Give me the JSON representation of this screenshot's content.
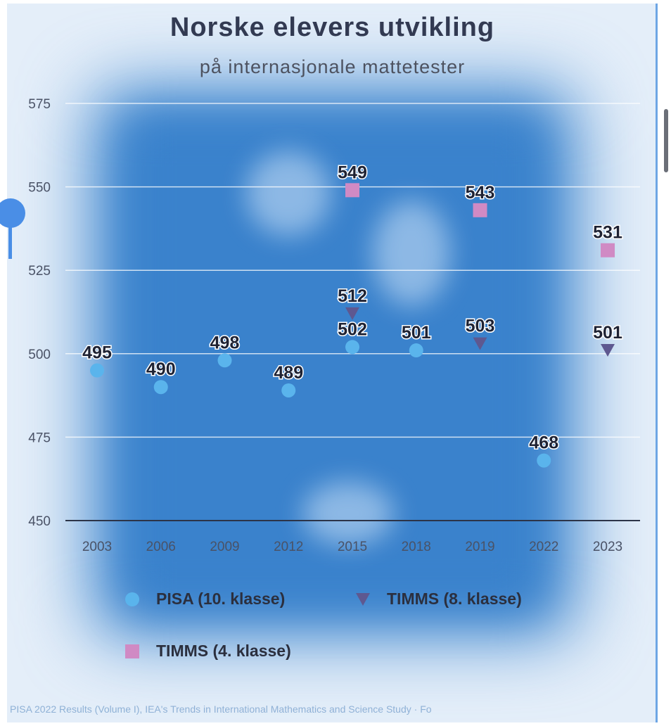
{
  "title": "Norske elevers utvikling",
  "subtitle": "på internasjonale mattetester",
  "legend": {
    "pisa": "PISA (10. klasse)",
    "timms8": "TIMMS (8. klasse)",
    "timms4": "TIMMS (4. klasse)"
  },
  "source": "PISA 2022 Results (Volume I), IEA's Trends in International Mathematics and Science Study · Fo",
  "colors": {
    "pisa": "#5ab4ec",
    "timms8": "#5e5890",
    "timms4": "#d08ac4",
    "label": "#1e2233",
    "tick": "#4a5266"
  },
  "chart_data": {
    "type": "scatter",
    "categories": [
      "2003",
      "2006",
      "2009",
      "2012",
      "2015",
      "2018",
      "2019",
      "2022",
      "2023"
    ],
    "ylim": [
      450,
      575
    ],
    "yticks": [
      450,
      475,
      500,
      525,
      550,
      575
    ],
    "grid": true,
    "legend_position": "bottom",
    "series": [
      {
        "name": "PISA (10. klasse)",
        "marker": "circle",
        "values": [
          495,
          490,
          498,
          489,
          502,
          501,
          null,
          468,
          null
        ]
      },
      {
        "name": "TIMMS (8. klasse)",
        "marker": "triangle-down",
        "values": [
          null,
          null,
          null,
          null,
          512,
          null,
          503,
          null,
          501
        ]
      },
      {
        "name": "TIMMS (4. klasse)",
        "marker": "square",
        "values": [
          null,
          null,
          null,
          null,
          549,
          null,
          543,
          null,
          531
        ]
      }
    ]
  }
}
